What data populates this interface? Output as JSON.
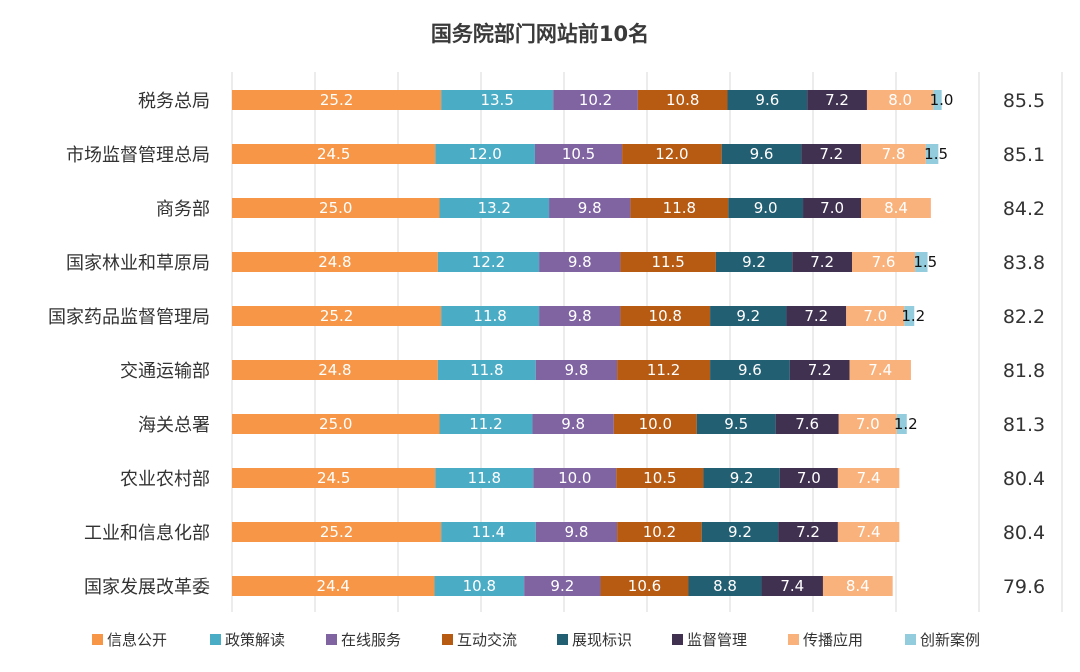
{
  "chart_data": {
    "type": "bar",
    "orientation": "horizontal",
    "stacked": true,
    "title": "国务院部门网站前10名",
    "categories": [
      "税务总局",
      "市场监督管理总局",
      "商务部",
      "国家林业和草原局",
      "国家药品监督管理局",
      "交通运输部",
      "海关总署",
      "农业农村部",
      "工业和信息化部",
      "国家发展改革委"
    ],
    "totals": [
      "85.5",
      "85.1",
      "84.2",
      "83.8",
      "82.2",
      "81.8",
      "81.3",
      "80.4",
      "80.4",
      "79.6"
    ],
    "series": [
      {
        "name": "信息公开",
        "color": "#F79646",
        "values": [
          25.2,
          24.5,
          25.0,
          24.8,
          25.2,
          24.8,
          25.0,
          24.5,
          25.2,
          24.4
        ]
      },
      {
        "name": "政策解读",
        "color": "#4BACC6",
        "values": [
          13.5,
          12.0,
          13.2,
          12.2,
          11.8,
          11.8,
          11.2,
          11.8,
          11.4,
          10.8
        ]
      },
      {
        "name": "在线服务",
        "color": "#8064A2",
        "values": [
          10.2,
          10.5,
          9.8,
          9.8,
          9.8,
          9.8,
          9.8,
          10.0,
          9.8,
          9.2
        ]
      },
      {
        "name": "互动交流",
        "color": "#B75A12",
        "values": [
          10.8,
          12.0,
          11.8,
          11.5,
          10.8,
          11.2,
          10.0,
          10.5,
          10.2,
          10.6
        ]
      },
      {
        "name": "展现标识",
        "color": "#235F73",
        "values": [
          9.6,
          9.6,
          9.0,
          9.2,
          9.2,
          9.6,
          9.5,
          9.2,
          9.2,
          8.8
        ]
      },
      {
        "name": "监督管理",
        "color": "#403151",
        "values": [
          7.2,
          7.2,
          7.0,
          7.2,
          7.2,
          7.2,
          7.6,
          7.0,
          7.2,
          7.4
        ]
      },
      {
        "name": "传播应用",
        "color": "#FAB27C",
        "values": [
          8.0,
          7.8,
          8.4,
          7.6,
          7.0,
          7.4,
          7.0,
          7.4,
          7.4,
          8.4
        ]
      },
      {
        "name": "创新案例",
        "color": "#93CDDD",
        "values": [
          1.0,
          1.5,
          0,
          1.5,
          1.2,
          0,
          1.2,
          0,
          0,
          0
        ]
      }
    ],
    "xlim": [
      0,
      100
    ],
    "grid": true,
    "legend_position": "bottom"
  }
}
